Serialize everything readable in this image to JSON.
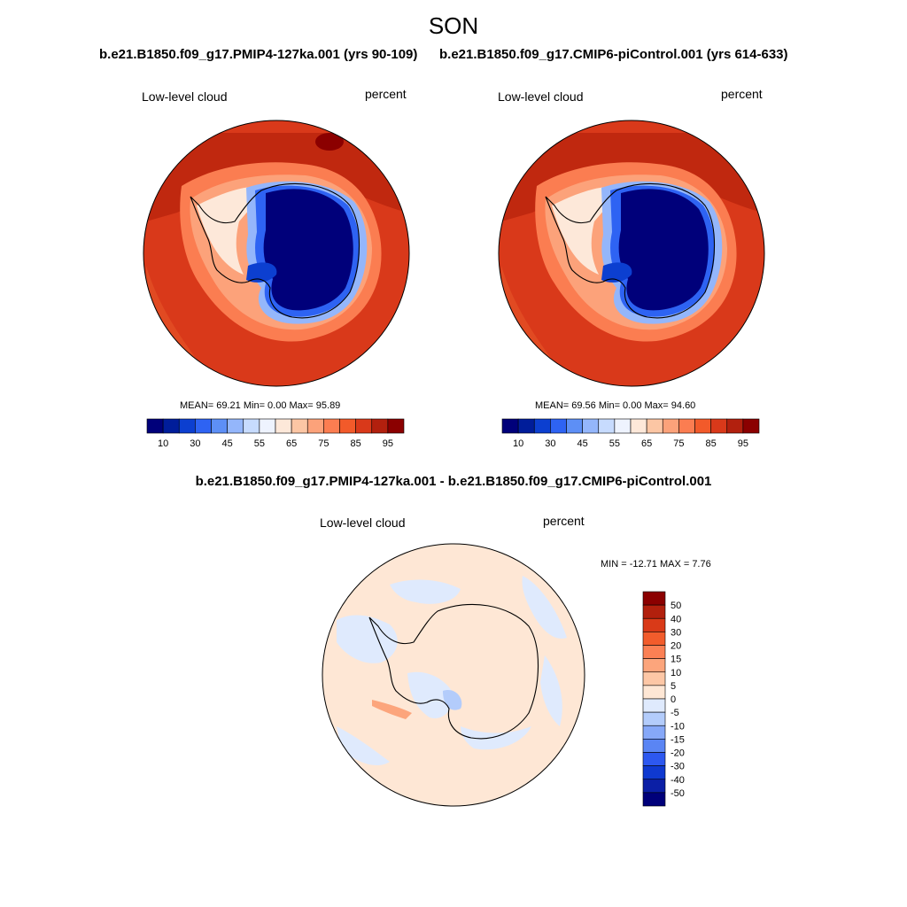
{
  "season": "SON",
  "panels": [
    {
      "case": "b.e21.B1850.f09_g17.PMIP4-127ka.001 (yrs 90-109)",
      "variable": "Low-level cloud",
      "units": "percent",
      "mean": "69.21",
      "min": "0.00",
      "max": "95.89",
      "stats_text": "MEAN=  69.21  Min=   0.00  Max=  95.89"
    },
    {
      "case": "b.e21.B1850.f09_g17.CMIP6-piControl.001 (yrs 614-633)",
      "variable": "Low-level cloud",
      "units": "percent",
      "mean": "69.56",
      "min": "0.00",
      "max": "94.60",
      "stats_text": "MEAN=  69.56  Min=   0.00  Max=  94.60"
    }
  ],
  "diff": {
    "title": "b.e21.B1850.f09_g17.PMIP4-127ka.001 - b.e21.B1850.f09_g17.CMIP6-piControl.001",
    "variable": "Low-level cloud",
    "units": "percent",
    "min": "-12.71",
    "max": "7.76",
    "stats_text": "MIN = -12.71 MAX =   7.76"
  },
  "colorbar": {
    "colors": [
      "#00007a",
      "#001d9a",
      "#0c3fd0",
      "#2e63f3",
      "#5d8ff6",
      "#94b6fb",
      "#c7dbfe",
      "#eef3fe",
      "#fde8d9",
      "#fcc6a4",
      "#fca27a",
      "#fb7d51",
      "#f25a2a",
      "#d9391a",
      "#b2200e",
      "#8b0000"
    ],
    "ticks": [
      "10",
      "30",
      "45",
      "55",
      "65",
      "75",
      "85",
      "95"
    ]
  },
  "diff_colorbar": {
    "colors": [
      "#00007a",
      "#0b1fa6",
      "#0f39d0",
      "#2d58f0",
      "#5a85f4",
      "#86a8f8",
      "#b3ccfb",
      "#dfeafd",
      "#fee7d5",
      "#fdc7a6",
      "#fca57c",
      "#fb8054",
      "#f25c2c",
      "#d93a18",
      "#b2200d",
      "#8b0000"
    ],
    "ticks": [
      "50",
      "40",
      "30",
      "20",
      "15",
      "10",
      "5",
      "0",
      "-5",
      "-10",
      "-15",
      "-20",
      "-30",
      "-40",
      "-50"
    ]
  }
}
